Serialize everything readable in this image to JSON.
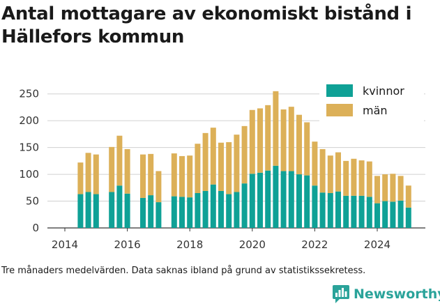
{
  "title": "Antal mottagare av ekonomiskt bistånd i Hällefors kommun",
  "footnote": "Tre månaders medelvärden. Data saknas ibland på grund av statistikssekretess.",
  "brand": {
    "name": "Newsworthy",
    "color": "#2aa39a",
    "icon": "newsworthy-logo-icon"
  },
  "chart_data": {
    "type": "bar",
    "stacked": true,
    "xlabel": "",
    "ylabel": "",
    "ylim": [
      0,
      260
    ],
    "yticks": [
      0,
      50,
      100,
      150,
      200,
      250
    ],
    "xticks": [
      "2014",
      "2016",
      "2018",
      "2020",
      "2022",
      "2024"
    ],
    "grid": "horizontal",
    "legend_position": "top-right",
    "x": [
      2014.5,
      2014.75,
      2015.0,
      2015.5,
      2015.75,
      2016.0,
      2016.5,
      2016.75,
      2017.0,
      2017.5,
      2017.75,
      2018.0,
      2018.25,
      2018.5,
      2018.75,
      2019.0,
      2019.25,
      2019.5,
      2019.75,
      2020.0,
      2020.25,
      2020.5,
      2020.75,
      2021.0,
      2021.25,
      2021.5,
      2021.75,
      2022.0,
      2022.25,
      2022.5,
      2022.75,
      2023.0,
      2023.25,
      2023.5,
      2023.75,
      2024.0,
      2024.25,
      2024.5,
      2024.75,
      2025.0
    ],
    "series": [
      {
        "name": "kvinnor",
        "color": "#0fa196",
        "values": [
          63,
          67,
          63,
          67,
          79,
          64,
          56,
          61,
          48,
          59,
          58,
          57,
          65,
          69,
          81,
          69,
          63,
          67,
          83,
          101,
          103,
          107,
          116,
          106,
          106,
          100,
          98,
          79,
          66,
          65,
          68,
          60,
          60,
          60,
          58,
          46,
          50,
          49,
          51,
          38
        ]
      },
      {
        "name": "män",
        "color": "#dcb058",
        "values": [
          59,
          73,
          74,
          84,
          93,
          83,
          81,
          77,
          58,
          80,
          76,
          78,
          92,
          108,
          106,
          90,
          97,
          107,
          107,
          119,
          120,
          122,
          139,
          115,
          120,
          111,
          99,
          82,
          81,
          70,
          73,
          65,
          69,
          66,
          66,
          51,
          50,
          52,
          46,
          41
        ]
      }
    ]
  }
}
